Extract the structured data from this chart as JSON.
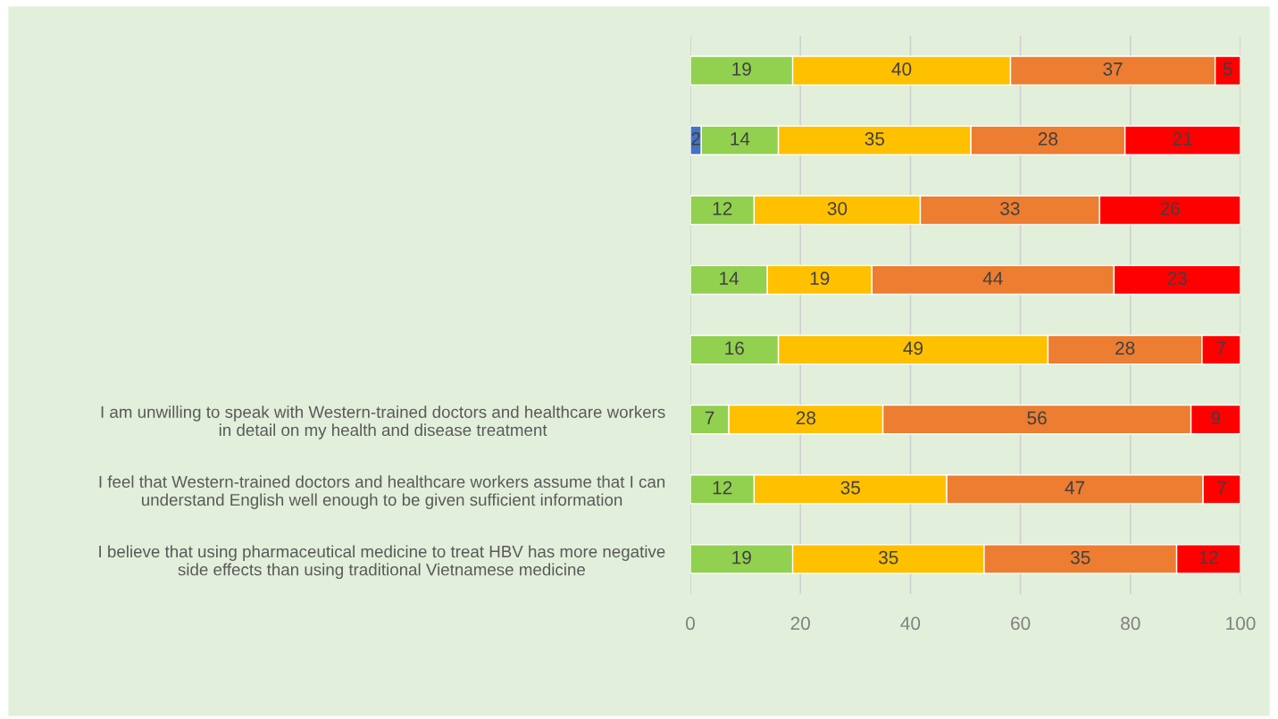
{
  "chart_data": {
    "type": "bar",
    "orientation": "horizontal",
    "stacked": true,
    "categories": [
      null,
      null,
      null,
      null,
      null,
      "I am unwilling to speak with Western-trained doctors and healthcare workers\nin detail on my health and disease treatment",
      "I feel that Western-trained doctors and healthcare workers assume that I can\nunderstand English well enough to be given sufficient information",
      "I believe that using pharmaceutical medicine to treat HBV has more negative\nside effects than using traditional Vietnamese medicine"
    ],
    "series": [
      {
        "color": "#4472c4",
        "values": [
          null,
          2,
          null,
          null,
          null,
          null,
          null,
          null
        ],
        "value_labels": [
          null,
          "2",
          null,
          null,
          null,
          null,
          null,
          null
        ]
      },
      {
        "color": "#92d050",
        "values": [
          18.6,
          14,
          11.6,
          14,
          16,
          7,
          11.6,
          18.6
        ],
        "value_labels": [
          "19",
          "14",
          "12",
          "14",
          "16",
          "7",
          "12",
          "19"
        ]
      },
      {
        "color": "#ffc000",
        "values": [
          39.6,
          35,
          30.2,
          19,
          49,
          28,
          35,
          34.8
        ],
        "value_labels": [
          "40",
          "35",
          "30",
          "19",
          "49",
          "28",
          "35",
          "35"
        ]
      },
      {
        "color": "#ed7d31",
        "values": [
          37.2,
          28,
          32.6,
          44,
          28,
          56,
          46.6,
          35
        ],
        "value_labels": [
          "37",
          "28",
          "33",
          "44",
          "28",
          "56",
          "47",
          "35"
        ]
      },
      {
        "color": "#ff0000",
        "values": [
          4.6,
          21,
          25.6,
          23,
          7,
          9,
          6.8,
          11.6
        ],
        "value_labels": [
          "5",
          "21",
          "26",
          "23",
          "7",
          "9",
          "7",
          "12"
        ]
      }
    ],
    "xlim": [
      0,
      100
    ],
    "xticks": [
      0,
      20,
      40,
      60,
      80,
      100
    ],
    "grid": "x",
    "legend": false
  }
}
